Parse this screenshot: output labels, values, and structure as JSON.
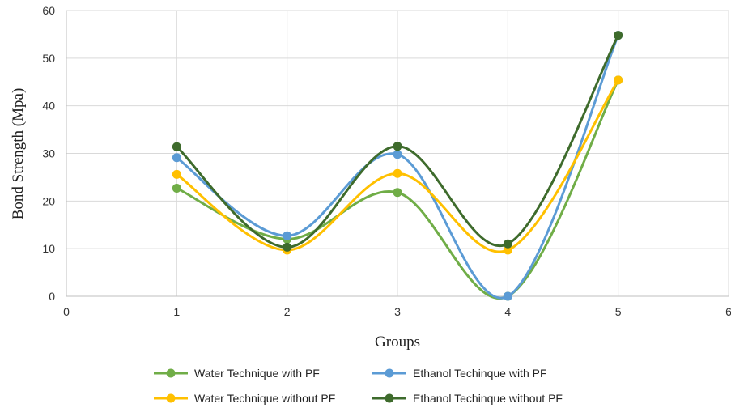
{
  "chart_data": {
    "type": "line",
    "xlabel": "Groups",
    "ylabel": "Bond Strength (Mpa)",
    "xlim": [
      0,
      6
    ],
    "ylim": [
      0,
      60
    ],
    "xticks": [
      0,
      1,
      2,
      3,
      4,
      5,
      6
    ],
    "yticks": [
      0,
      10,
      20,
      30,
      40,
      50,
      60
    ],
    "grid": true,
    "smooth": true,
    "legend_position": "bottom",
    "x": [
      1,
      2,
      3,
      4,
      5
    ],
    "series": [
      {
        "name": "Water Technique  with PF",
        "color": "#70ad47",
        "values": [
          22.7,
          12.0,
          21.8,
          0.0,
          45.4
        ]
      },
      {
        "name": "Ethanol Techinque with PF",
        "color": "#5b9bd5",
        "values": [
          29.1,
          12.7,
          29.8,
          0.0,
          54.8
        ]
      },
      {
        "name": "Water Technique  without PF",
        "color": "#ffc000",
        "values": [
          25.6,
          9.7,
          25.8,
          9.7,
          45.4
        ]
      },
      {
        "name": "Ethanol Techinque without PF",
        "color": "#3e6b2c",
        "values": [
          31.4,
          10.3,
          31.5,
          11.0,
          54.8
        ]
      }
    ]
  }
}
